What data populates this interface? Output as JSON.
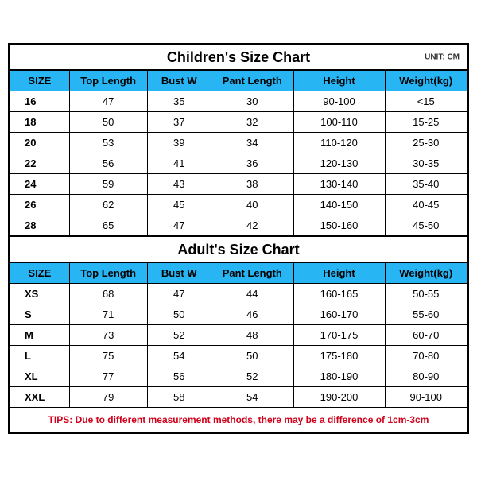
{
  "colors": {
    "header_bg": "#28b5f4",
    "border": "#000000",
    "tips_text": "#d0021b",
    "text": "#000000",
    "background": "#ffffff"
  },
  "children": {
    "title": "Children's Size Chart",
    "unit": "UNIT: CM",
    "columns": [
      "SIZE",
      "Top Length",
      "Bust W",
      "Pant Length",
      "Height",
      "Weight(kg)"
    ],
    "rows": [
      [
        "16",
        "47",
        "35",
        "30",
        "90-100",
        "<15"
      ],
      [
        "18",
        "50",
        "37",
        "32",
        "100-110",
        "15-25"
      ],
      [
        "20",
        "53",
        "39",
        "34",
        "110-120",
        "25-30"
      ],
      [
        "22",
        "56",
        "41",
        "36",
        "120-130",
        "30-35"
      ],
      [
        "24",
        "59",
        "43",
        "38",
        "130-140",
        "35-40"
      ],
      [
        "26",
        "62",
        "45",
        "40",
        "140-150",
        "40-45"
      ],
      [
        "28",
        "65",
        "47",
        "42",
        "150-160",
        "45-50"
      ]
    ]
  },
  "adult": {
    "title": "Adult's Size Chart",
    "columns": [
      "SIZE",
      "Top Length",
      "Bust W",
      "Pant Length",
      "Height",
      "Weight(kg)"
    ],
    "rows": [
      [
        "XS",
        "68",
        "47",
        "44",
        "160-165",
        "50-55"
      ],
      [
        "S",
        "71",
        "50",
        "46",
        "160-170",
        "55-60"
      ],
      [
        "M",
        "73",
        "52",
        "48",
        "170-175",
        "60-70"
      ],
      [
        "L",
        "75",
        "54",
        "50",
        "175-180",
        "70-80"
      ],
      [
        "XL",
        "77",
        "56",
        "52",
        "180-190",
        "80-90"
      ],
      [
        "XXL",
        "79",
        "58",
        "54",
        "190-200",
        "90-100"
      ]
    ]
  },
  "tips": "TIPS: Due to different measurement methods, there may be a difference of 1cm-3cm"
}
